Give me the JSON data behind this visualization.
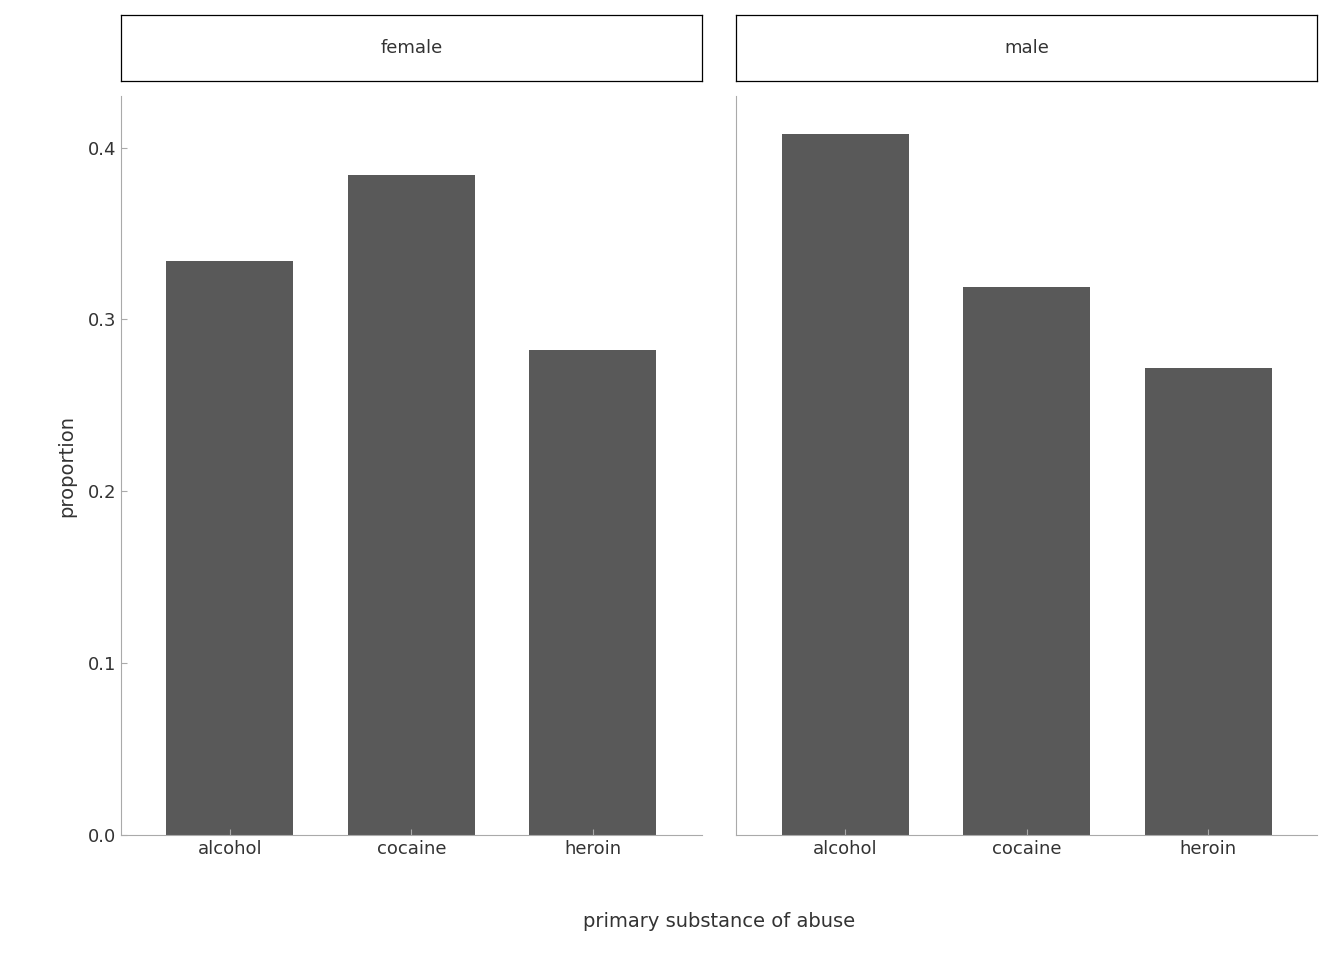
{
  "facets": [
    "female",
    "male"
  ],
  "categories": [
    "alcohol",
    "cocaine",
    "heroin"
  ],
  "values": {
    "female": [
      0.334,
      0.384,
      0.282
    ],
    "male": [
      0.408,
      0.319,
      0.272
    ]
  },
  "bar_color": "#595959",
  "background_color": "#ffffff",
  "panel_background": "#ffffff",
  "xlabel": "primary substance of abuse",
  "ylabel": "proportion",
  "ylim": [
    0,
    0.43
  ],
  "yticks": [
    0.0,
    0.1,
    0.2,
    0.3,
    0.4
  ],
  "ytick_labels": [
    "0.0",
    "0.1",
    "0.2",
    "0.3",
    "0.4"
  ],
  "axis_label_fontsize": 14,
  "tick_fontsize": 13,
  "strip_fontsize": 13,
  "bar_width": 0.7
}
